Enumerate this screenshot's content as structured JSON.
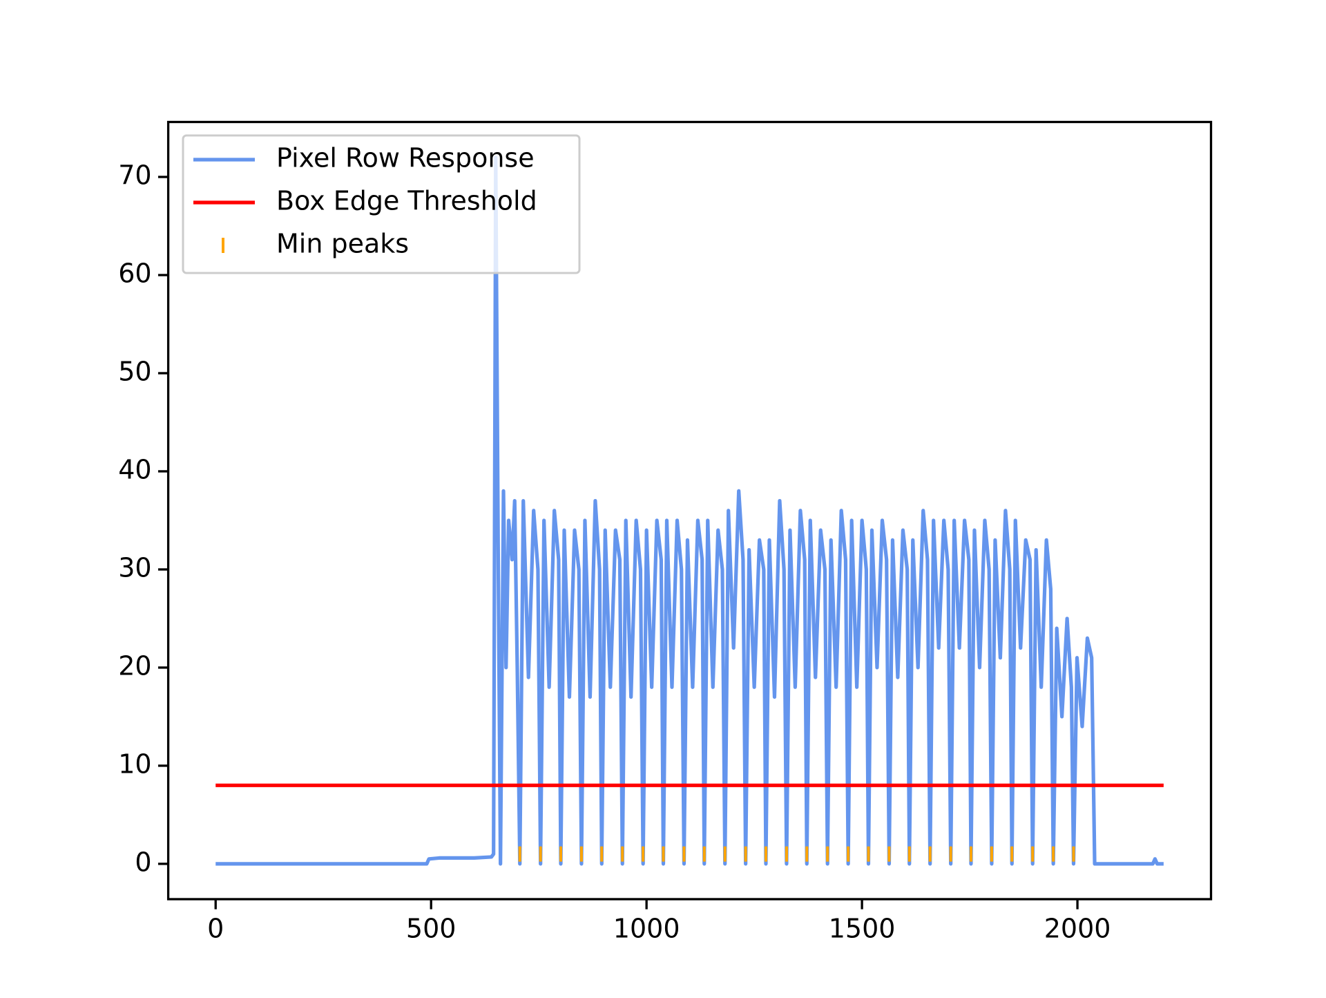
{
  "chart_data": {
    "type": "line",
    "xlim": [
      -110,
      2310
    ],
    "ylim": [
      -3.6,
      75.6
    ],
    "xticks": [
      0,
      500,
      1000,
      1500,
      2000
    ],
    "yticks": [
      0,
      10,
      20,
      30,
      40,
      50,
      60,
      70
    ],
    "grid": false,
    "legend": "upper left",
    "series": [
      {
        "name": "Pixel Row Response",
        "color": "#6495ed",
        "style": "line",
        "x": [
          0,
          490,
          495,
          520,
          600,
          640,
          645,
          650,
          656,
          661,
          668,
          674,
          680,
          688,
          694,
          700,
          706,
          714,
          726,
          738,
          748,
          754,
          762,
          774,
          786,
          796,
          801,
          809,
          821,
          833,
          843,
          849,
          857,
          869,
          881,
          891,
          896,
          904,
          916,
          928,
          938,
          944,
          952,
          964,
          976,
          986,
          992,
          1000,
          1012,
          1024,
          1034,
          1039,
          1047,
          1059,
          1071,
          1081,
          1087,
          1095,
          1107,
          1119,
          1129,
          1134,
          1142,
          1154,
          1166,
          1176,
          1182,
          1190,
          1202,
          1214,
          1224,
          1230,
          1238,
          1250,
          1262,
          1272,
          1277,
          1285,
          1297,
          1309,
          1319,
          1325,
          1333,
          1345,
          1357,
          1367,
          1372,
          1380,
          1392,
          1404,
          1414,
          1420,
          1428,
          1440,
          1452,
          1462,
          1468,
          1476,
          1488,
          1500,
          1510,
          1515,
          1523,
          1535,
          1547,
          1557,
          1563,
          1571,
          1583,
          1595,
          1605,
          1610,
          1618,
          1630,
          1642,
          1652,
          1658,
          1666,
          1678,
          1690,
          1700,
          1706,
          1714,
          1726,
          1738,
          1748,
          1753,
          1761,
          1773,
          1785,
          1795,
          1801,
          1809,
          1821,
          1833,
          1843,
          1848,
          1856,
          1868,
          1880,
          1890,
          1896,
          1904,
          1916,
          1928,
          1938,
          1944,
          1952,
          1964,
          1976,
          1986,
          1991,
          1999,
          2011,
          2023,
          2033,
          2040,
          2175,
          2180,
          2185,
          2200
        ],
        "values": [
          0,
          0,
          0.5,
          0.6,
          0.6,
          0.7,
          1,
          72,
          30,
          0,
          38,
          20,
          35,
          31,
          37,
          20,
          0,
          37,
          19,
          36,
          30,
          0,
          35,
          18,
          36,
          31,
          0,
          34,
          17,
          34,
          30,
          0,
          35,
          17,
          37,
          30,
          0,
          34,
          18,
          34,
          31,
          0,
          35,
          17,
          35,
          30,
          0,
          34,
          18,
          35,
          31,
          0,
          35,
          18,
          35,
          30,
          0,
          33,
          18,
          35,
          31,
          0,
          35,
          18,
          34,
          30,
          0,
          36,
          22,
          38,
          31,
          0,
          32,
          18,
          33,
          30,
          0,
          33,
          17,
          37,
          30,
          0,
          34,
          18,
          36,
          31,
          0,
          35,
          19,
          34,
          30,
          0,
          33,
          18,
          36,
          31,
          0,
          35,
          18,
          35,
          30,
          0,
          34,
          20,
          35,
          31,
          0,
          33,
          19,
          34,
          30,
          0,
          33,
          20,
          36,
          31,
          0,
          35,
          22,
          35,
          30,
          0,
          35,
          22,
          35,
          31,
          0,
          34,
          20,
          35,
          30,
          0,
          33,
          21,
          36,
          30,
          0,
          35,
          22,
          33,
          31,
          0,
          32,
          18,
          33,
          28,
          0,
          24,
          15,
          25,
          18,
          0,
          21,
          14,
          23,
          21,
          0,
          0,
          0.5,
          0,
          0
        ]
      },
      {
        "name": "Box Edge Threshold",
        "color": "#ff0000",
        "style": "line",
        "x": [
          0,
          2200
        ],
        "values": [
          8,
          8
        ]
      },
      {
        "name": "Min peaks",
        "color": "#ffa500",
        "style": "marker",
        "x": [
          706,
          754,
          801,
          849,
          896,
          944,
          992,
          1039,
          1087,
          1134,
          1182,
          1230,
          1277,
          1325,
          1372,
          1420,
          1468,
          1515,
          1563,
          1610,
          1658,
          1706,
          1753,
          1801,
          1848,
          1896,
          1944,
          1991
        ],
        "values": [
          1,
          1,
          1,
          1,
          1,
          1,
          1,
          1,
          1,
          1,
          1,
          1,
          1,
          1,
          1,
          1,
          1,
          1,
          1,
          1,
          1,
          1,
          1,
          1,
          1,
          1,
          1,
          1
        ]
      }
    ]
  }
}
